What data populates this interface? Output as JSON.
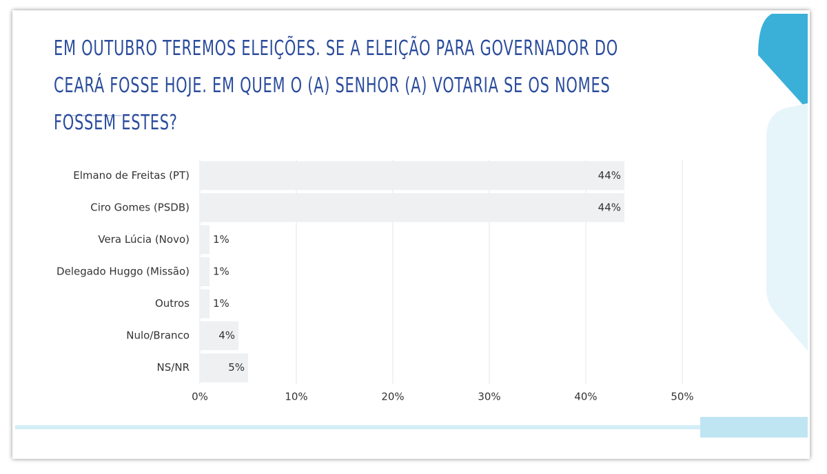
{
  "chart_data": {
    "type": "bar",
    "orientation": "horizontal",
    "title": "EM OUTUBRO TEREMOS ELEIÇÕES. SE A ELEIÇÃO PARA GOVERNADOR DO CEARÁ FOSSE HOJE. EM QUEM O (A) SENHOR (A) VOTARIA SE OS NOMES FOSSEM ESTES?",
    "categories": [
      "Elmano de Freitas (PT)",
      "Ciro Gomes (PSDB)",
      "Vera Lúcia (Novo)",
      "Delegado Huggo (Missão)",
      "Outros",
      "Nulo/Branco",
      "NS/NR"
    ],
    "values": [
      44,
      44,
      1,
      1,
      1,
      4,
      5
    ],
    "value_labels": [
      "44%",
      "44%",
      "1%",
      "1%",
      "1%",
      "4%",
      "5%"
    ],
    "color": "#eef0f1",
    "xlim": [
      0,
      50
    ],
    "xticks": [
      {
        "value": 0,
        "label": "0%"
      },
      {
        "value": 10,
        "label": "10%"
      },
      {
        "value": 20,
        "label": "20%"
      },
      {
        "value": 30,
        "label": "30%"
      },
      {
        "value": 40,
        "label": "40%"
      },
      {
        "value": 50,
        "label": "50%"
      }
    ],
    "grid": true
  }
}
